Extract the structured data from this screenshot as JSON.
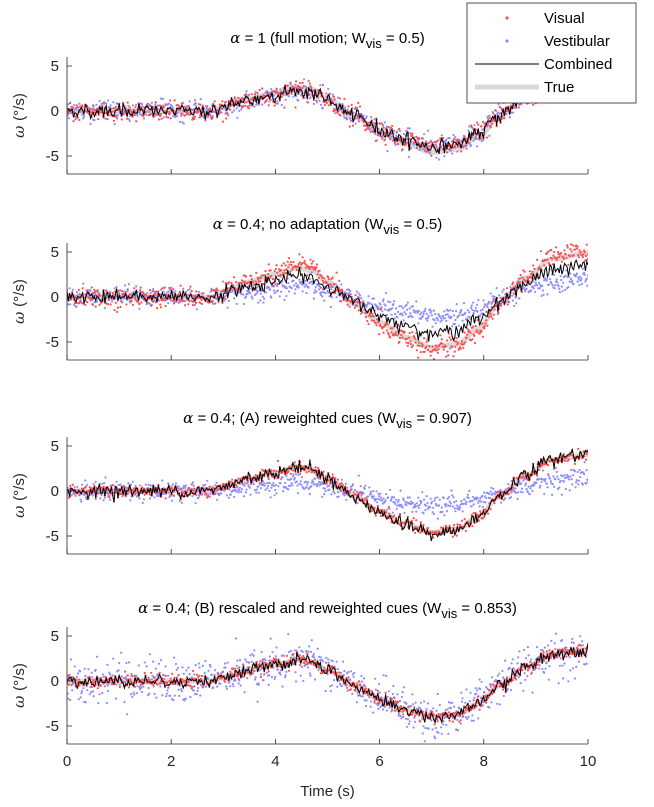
{
  "chart_data": {
    "type": "line",
    "xlabel": "Time (s)",
    "ylabel_symbol": "ω",
    "ylabel_unit": "(°/s)",
    "xlim": [
      0,
      10
    ],
    "ylim": [
      -7,
      6
    ],
    "xticks": [
      0,
      2,
      4,
      6,
      8,
      10
    ],
    "yticks": [
      -5,
      0,
      5
    ],
    "legend": {
      "placement": "top-right",
      "entries": [
        {
          "label": "Visual",
          "color": "#ff4d4d",
          "style": "dots"
        },
        {
          "label": "Vestibular",
          "color": "#8c8cff",
          "style": "dots"
        },
        {
          "label": "Combined",
          "color": "#000000",
          "style": "line"
        },
        {
          "label": "True",
          "color": "#d9d9d9",
          "style": "thick-line"
        }
      ]
    },
    "true_signal": {
      "x": [
        0,
        2.8,
        3.0,
        3.5,
        4.0,
        4.4,
        4.7,
        5.0,
        5.5,
        6.0,
        6.5,
        7.0,
        7.5,
        7.9,
        8.3,
        8.8,
        9.3,
        10.0
      ],
      "y": [
        0,
        0,
        0.4,
        1.2,
        1.8,
        2.3,
        2.1,
        1.2,
        -0.5,
        -2.0,
        -3.2,
        -4.0,
        -3.7,
        -2.5,
        -0.5,
        1.5,
        3.0,
        3.5
      ]
    },
    "panels": [
      {
        "title_alpha": "α",
        "title_pre": " = 1 (full motion; W",
        "title_sub": "vis",
        "title_post": " = 0.5)",
        "visual_gain": 1.0,
        "visual_noise": 0.55,
        "vestibular_gain": 1.0,
        "vestibular_noise": 0.55,
        "vestibular_offset": 0,
        "w_vis": 0.5,
        "combined_gain": 1.0,
        "true_gain": 1.15,
        "show_legend": true
      },
      {
        "title_alpha": "α",
        "title_pre": " = 0.4; no adaptation (W",
        "title_sub": "vis",
        "title_post": " = 0.5)",
        "visual_gain": 1.45,
        "visual_noise": 0.55,
        "vestibular_gain": 0.55,
        "vestibular_noise": 0.55,
        "vestibular_offset": 0,
        "w_vis": 0.5,
        "combined_gain": 1.0,
        "true_gain": 1.4,
        "show_legend": false
      },
      {
        "title_alpha": "α",
        "title_pre": " = 0.4; (A) reweighted cues (W",
        "title_sub": "vis",
        "title_post": " = 0.907)",
        "visual_gain": 1.15,
        "visual_noise": 0.35,
        "vestibular_gain": 0.4,
        "vestibular_noise": 0.55,
        "vestibular_offset": 0,
        "w_vis": 0.907,
        "combined_gain": 1.1,
        "true_gain": 1.15,
        "show_legend": false
      },
      {
        "title_alpha": "α",
        "title_pre": " = 0.4; (B) rescaled and reweighted cues (W",
        "title_sub": "vis",
        "title_post": " = 0.853)",
        "visual_gain": 1.0,
        "visual_noise": 0.35,
        "vestibular_gain": 1.0,
        "vestibular_noise": 1.2,
        "vestibular_offset": 0,
        "w_vis": 0.853,
        "combined_gain": 1.0,
        "true_gain": 1.0,
        "show_legend": false
      }
    ]
  }
}
